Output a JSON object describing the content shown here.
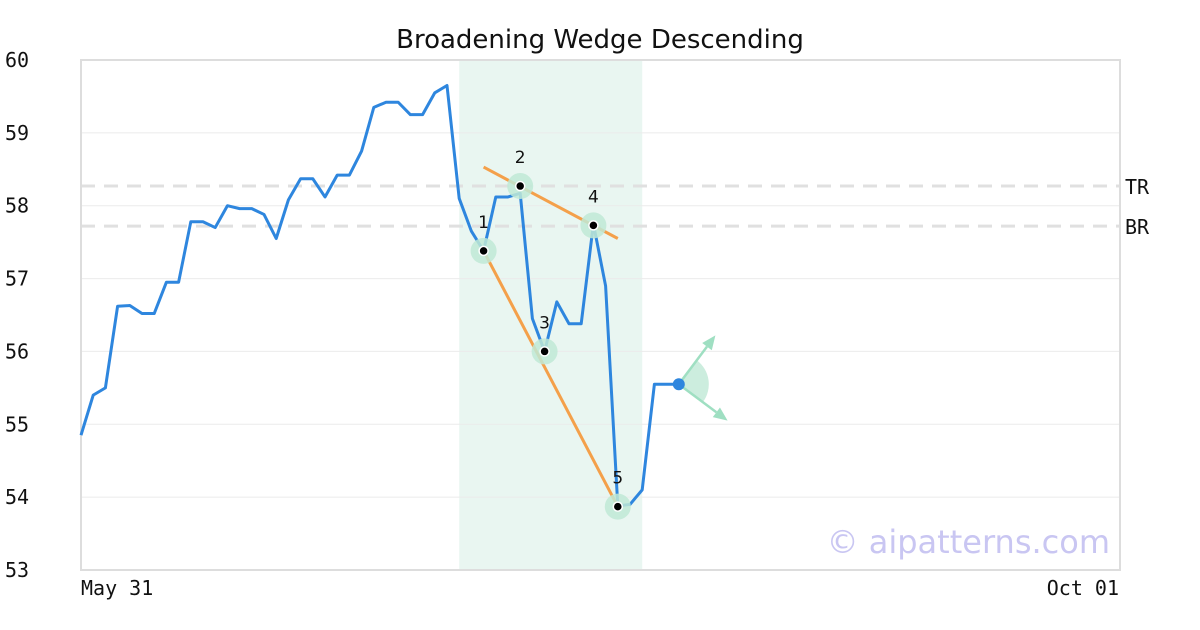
{
  "chart_data": {
    "type": "line",
    "title": "Broadening Wedge Descending",
    "watermark": "© aipatterns.com",
    "ylim": [
      53,
      60
    ],
    "y_ticks": [
      53,
      54,
      55,
      56,
      57,
      58,
      59,
      60
    ],
    "x_tick_labels": [
      {
        "label": "May 31",
        "index": 0
      },
      {
        "label": "Oct 01",
        "index": 85
      }
    ],
    "series": [
      {
        "color": "#2e86de",
        "values": [
          54.85,
          55.4,
          55.5,
          56.62,
          56.63,
          56.52,
          56.52,
          56.95,
          56.95,
          57.78,
          57.78,
          57.7,
          58.0,
          57.96,
          57.96,
          57.88,
          57.55,
          58.08,
          58.37,
          58.37,
          58.12,
          58.42,
          58.42,
          58.75,
          59.35,
          59.42,
          59.42,
          59.25,
          59.25,
          59.55,
          59.65,
          58.1,
          57.65,
          57.38,
          58.12,
          58.12,
          58.17,
          56.45,
          56.0,
          56.68,
          56.38,
          56.38,
          57.75,
          56.9,
          53.88,
          53.9,
          54.1,
          55.55,
          55.55,
          55.55
        ]
      }
    ],
    "highlight_region": {
      "x_start": 31,
      "x_end": 46,
      "color": "#e9f6f1"
    },
    "reference_lines": [
      {
        "label": "TR",
        "y": 58.27
      },
      {
        "label": "BR",
        "y": 57.72
      }
    ],
    "pattern_points": [
      {
        "label": "1",
        "x": 33,
        "y": 57.38
      },
      {
        "label": "2",
        "x": 36,
        "y": 58.27
      },
      {
        "label": "3",
        "x": 38,
        "y": 56.0
      },
      {
        "label": "4",
        "x": 42,
        "y": 57.73
      },
      {
        "label": "5",
        "x": 44,
        "y": 53.87
      }
    ],
    "trendlines": [
      {
        "color": "#f4a04a",
        "from": {
          "x": 33,
          "y": 58.53
        },
        "to": {
          "x": 44,
          "y": 57.55
        }
      },
      {
        "color": "#f4a04a",
        "from": {
          "x": 33,
          "y": 57.38
        },
        "to": {
          "x": 44,
          "y": 53.87
        }
      }
    ],
    "current_point": {
      "x": 49,
      "y": 55.55,
      "color": "#2e86de"
    },
    "projection_arrows": [
      {
        "from": {
          "x": 49,
          "y": 55.55
        },
        "to": {
          "x": 52,
          "y": 56.22
        }
      },
      {
        "from": {
          "x": 49,
          "y": 55.55
        },
        "to": {
          "x": 53,
          "y": 55.05
        }
      }
    ],
    "grid": true,
    "legend": "none"
  }
}
